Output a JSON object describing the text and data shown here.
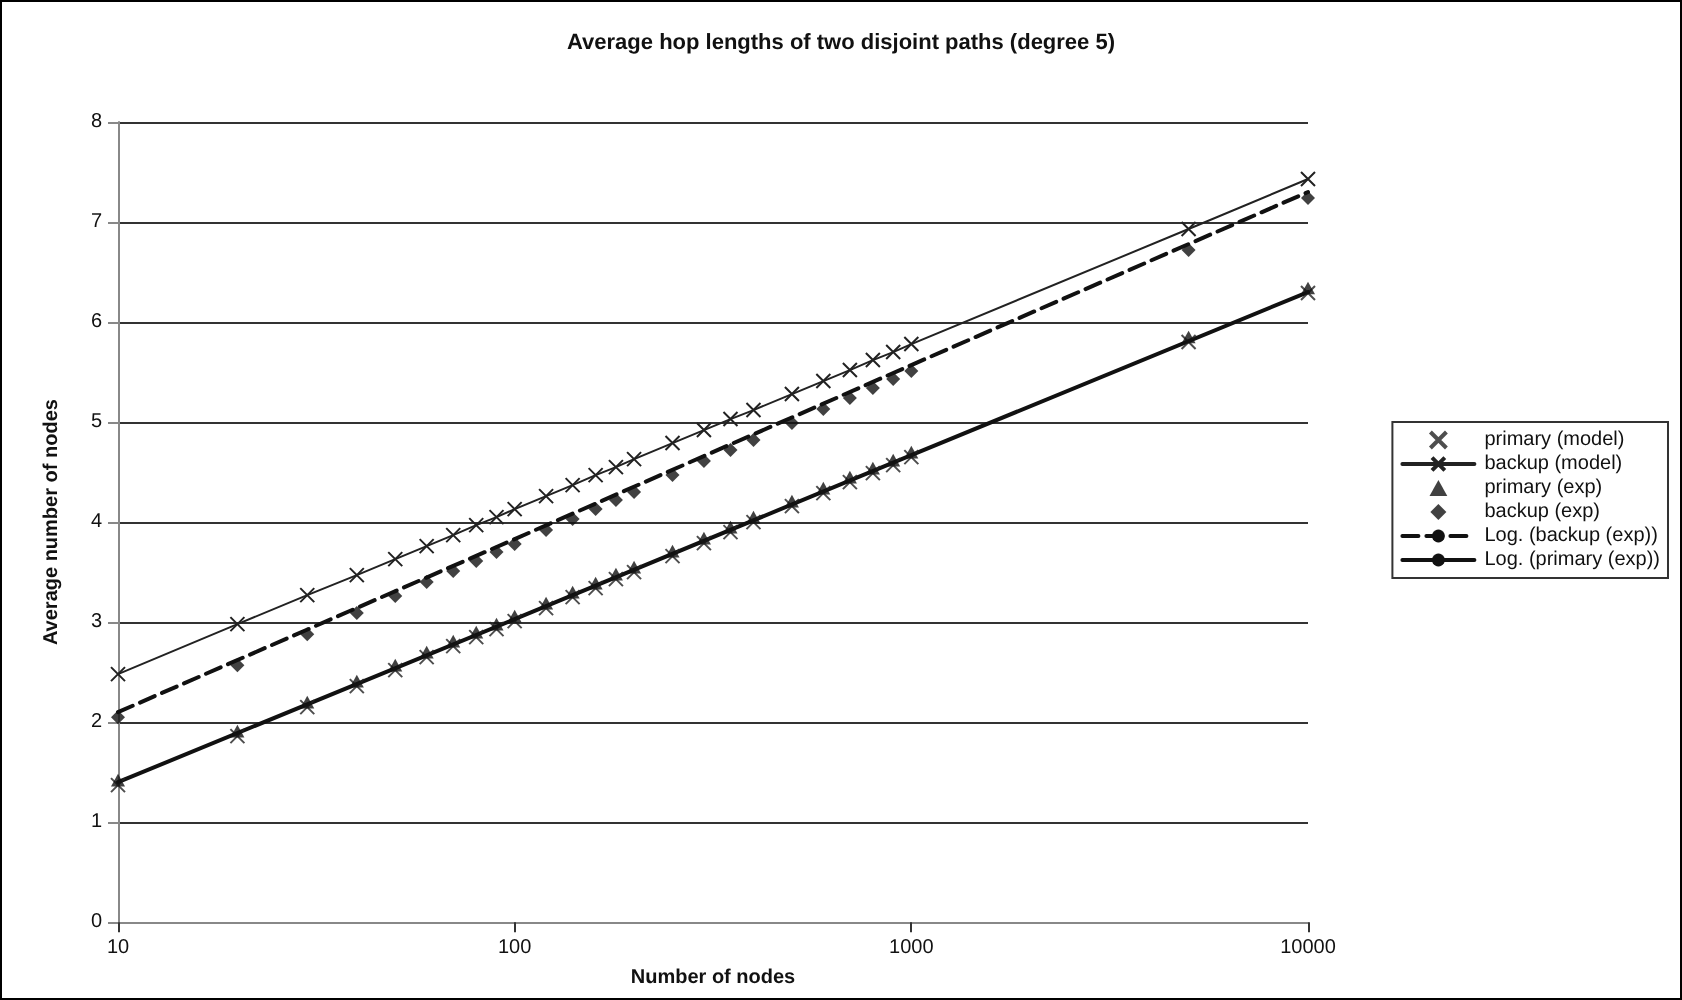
{
  "chart_data": {
    "type": "line",
    "title": "Average hop lengths of two disjoint paths (degree 5)",
    "xlabel": "Number of nodes",
    "ylabel": "Average number of nodes",
    "x": [
      10,
      20,
      30,
      40,
      50,
      60,
      70,
      80,
      90,
      100,
      120,
      140,
      160,
      180,
      200,
      250,
      300,
      350,
      400,
      500,
      600,
      700,
      800,
      900,
      1000,
      5000,
      10000
    ],
    "series": [
      {
        "name": "primary (model)",
        "type": "scatter",
        "marker": "cross",
        "color": "#222222",
        "values": [
          1.37,
          1.86,
          2.15,
          2.36,
          2.52,
          2.65,
          2.76,
          2.85,
          2.93,
          3.01,
          3.14,
          3.25,
          3.34,
          3.43,
          3.5,
          3.66,
          3.79,
          3.9,
          4.0,
          4.16,
          4.29,
          4.4,
          4.49,
          4.57,
          4.65,
          5.8,
          6.29
        ]
      },
      {
        "name": "backup (model)",
        "marker": "cross",
        "line_style": "solid",
        "color": "#222222",
        "values": [
          2.48,
          2.98,
          3.27,
          3.47,
          3.63,
          3.76,
          3.87,
          3.97,
          4.05,
          4.13,
          4.26,
          4.37,
          4.47,
          4.55,
          4.63,
          4.79,
          4.92,
          5.03,
          5.12,
          5.28,
          5.41,
          5.52,
          5.62,
          5.7,
          5.78,
          6.93,
          7.43
        ]
      },
      {
        "name": "primary (exp)",
        "type": "scatter",
        "marker": "triangle",
        "color": "#111111",
        "values": [
          1.42,
          1.91,
          2.2,
          2.41,
          2.57,
          2.7,
          2.81,
          2.9,
          2.98,
          3.06,
          3.19,
          3.3,
          3.39,
          3.48,
          3.55,
          3.71,
          3.84,
          3.95,
          4.05,
          4.21,
          4.34,
          4.45,
          4.54,
          4.62,
          4.7,
          5.85,
          6.34
        ]
      },
      {
        "name": "backup (exp)",
        "type": "scatter",
        "marker": "diamond",
        "color": "#111111",
        "values": [
          2.05,
          2.57,
          2.88,
          3.09,
          3.26,
          3.4,
          3.51,
          3.61,
          3.7,
          3.78,
          3.92,
          4.03,
          4.13,
          4.22,
          4.3,
          4.47,
          4.61,
          4.72,
          4.82,
          4.99,
          5.13,
          5.24,
          5.34,
          5.43,
          5.51,
          6.72,
          7.24
        ]
      },
      {
        "name": "Log. (backup (exp))",
        "marker": "none",
        "line_style": "dashed",
        "color": "#111111",
        "x": [
          10,
          100,
          1000,
          10000
        ],
        "values": [
          2.1,
          3.83,
          5.57,
          7.3
        ]
      },
      {
        "name": "Log. (primary (exp))",
        "marker": "none",
        "line_style": "solid",
        "color": "#111111",
        "x": [
          10,
          100,
          1000,
          10000
        ],
        "values": [
          1.4,
          3.03,
          4.67,
          6.3
        ]
      }
    ],
    "log": "x",
    "xlim": [
      10,
      10000
    ],
    "xticks": [
      10,
      100,
      1000,
      10000
    ],
    "ylim": [
      0,
      8
    ],
    "yticks": [
      0,
      1,
      2,
      3,
      4,
      5,
      6,
      7,
      8
    ],
    "grid": "y",
    "legend": "right"
  }
}
